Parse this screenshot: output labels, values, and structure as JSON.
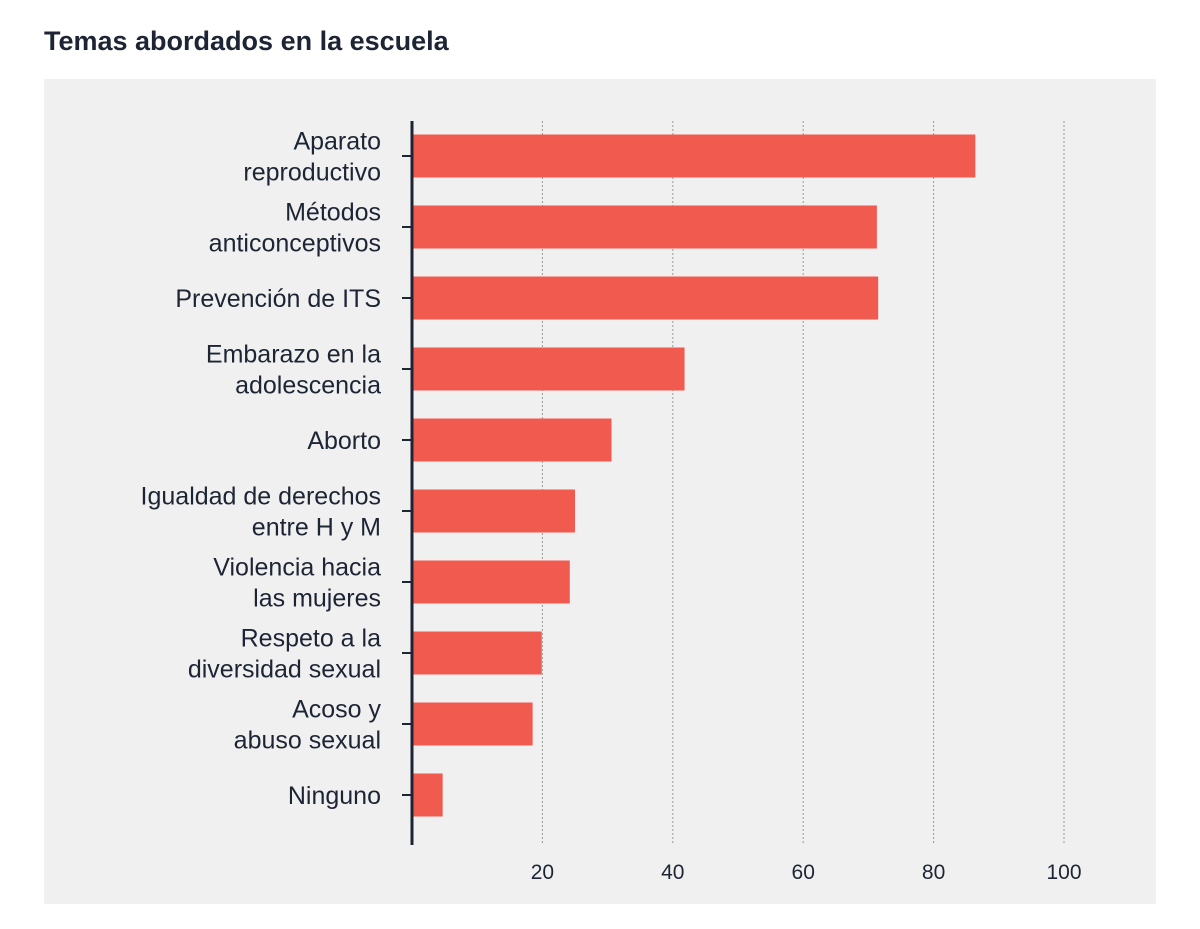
{
  "chart_data": {
    "type": "bar",
    "orientation": "horizontal",
    "title": "Temas abordados en la escuela",
    "categories": [
      [
        "Aparato",
        "reproductivo"
      ],
      [
        "Métodos",
        "anticonceptivos"
      ],
      [
        "Prevención de ITS"
      ],
      [
        "Embarazo en la",
        "adolescencia"
      ],
      [
        "Aborto"
      ],
      [
        "Igualdad de derechos",
        "entre H y M"
      ],
      [
        "Violencia hacia",
        "las mujeres"
      ],
      [
        "Respeto a la",
        "diversidad sexual"
      ],
      [
        "Acoso y",
        "abuso sexual"
      ],
      [
        "Ninguno"
      ]
    ],
    "values": [
      86.4,
      71.3,
      71.5,
      41.8,
      30.6,
      25.0,
      24.2,
      19.9,
      18.5,
      4.7
    ],
    "xlim": [
      0,
      100
    ],
    "xticks": [
      20,
      40,
      60,
      80,
      100
    ],
    "grid": "vertical dotted",
    "bar_color": "#f05a4f"
  }
}
